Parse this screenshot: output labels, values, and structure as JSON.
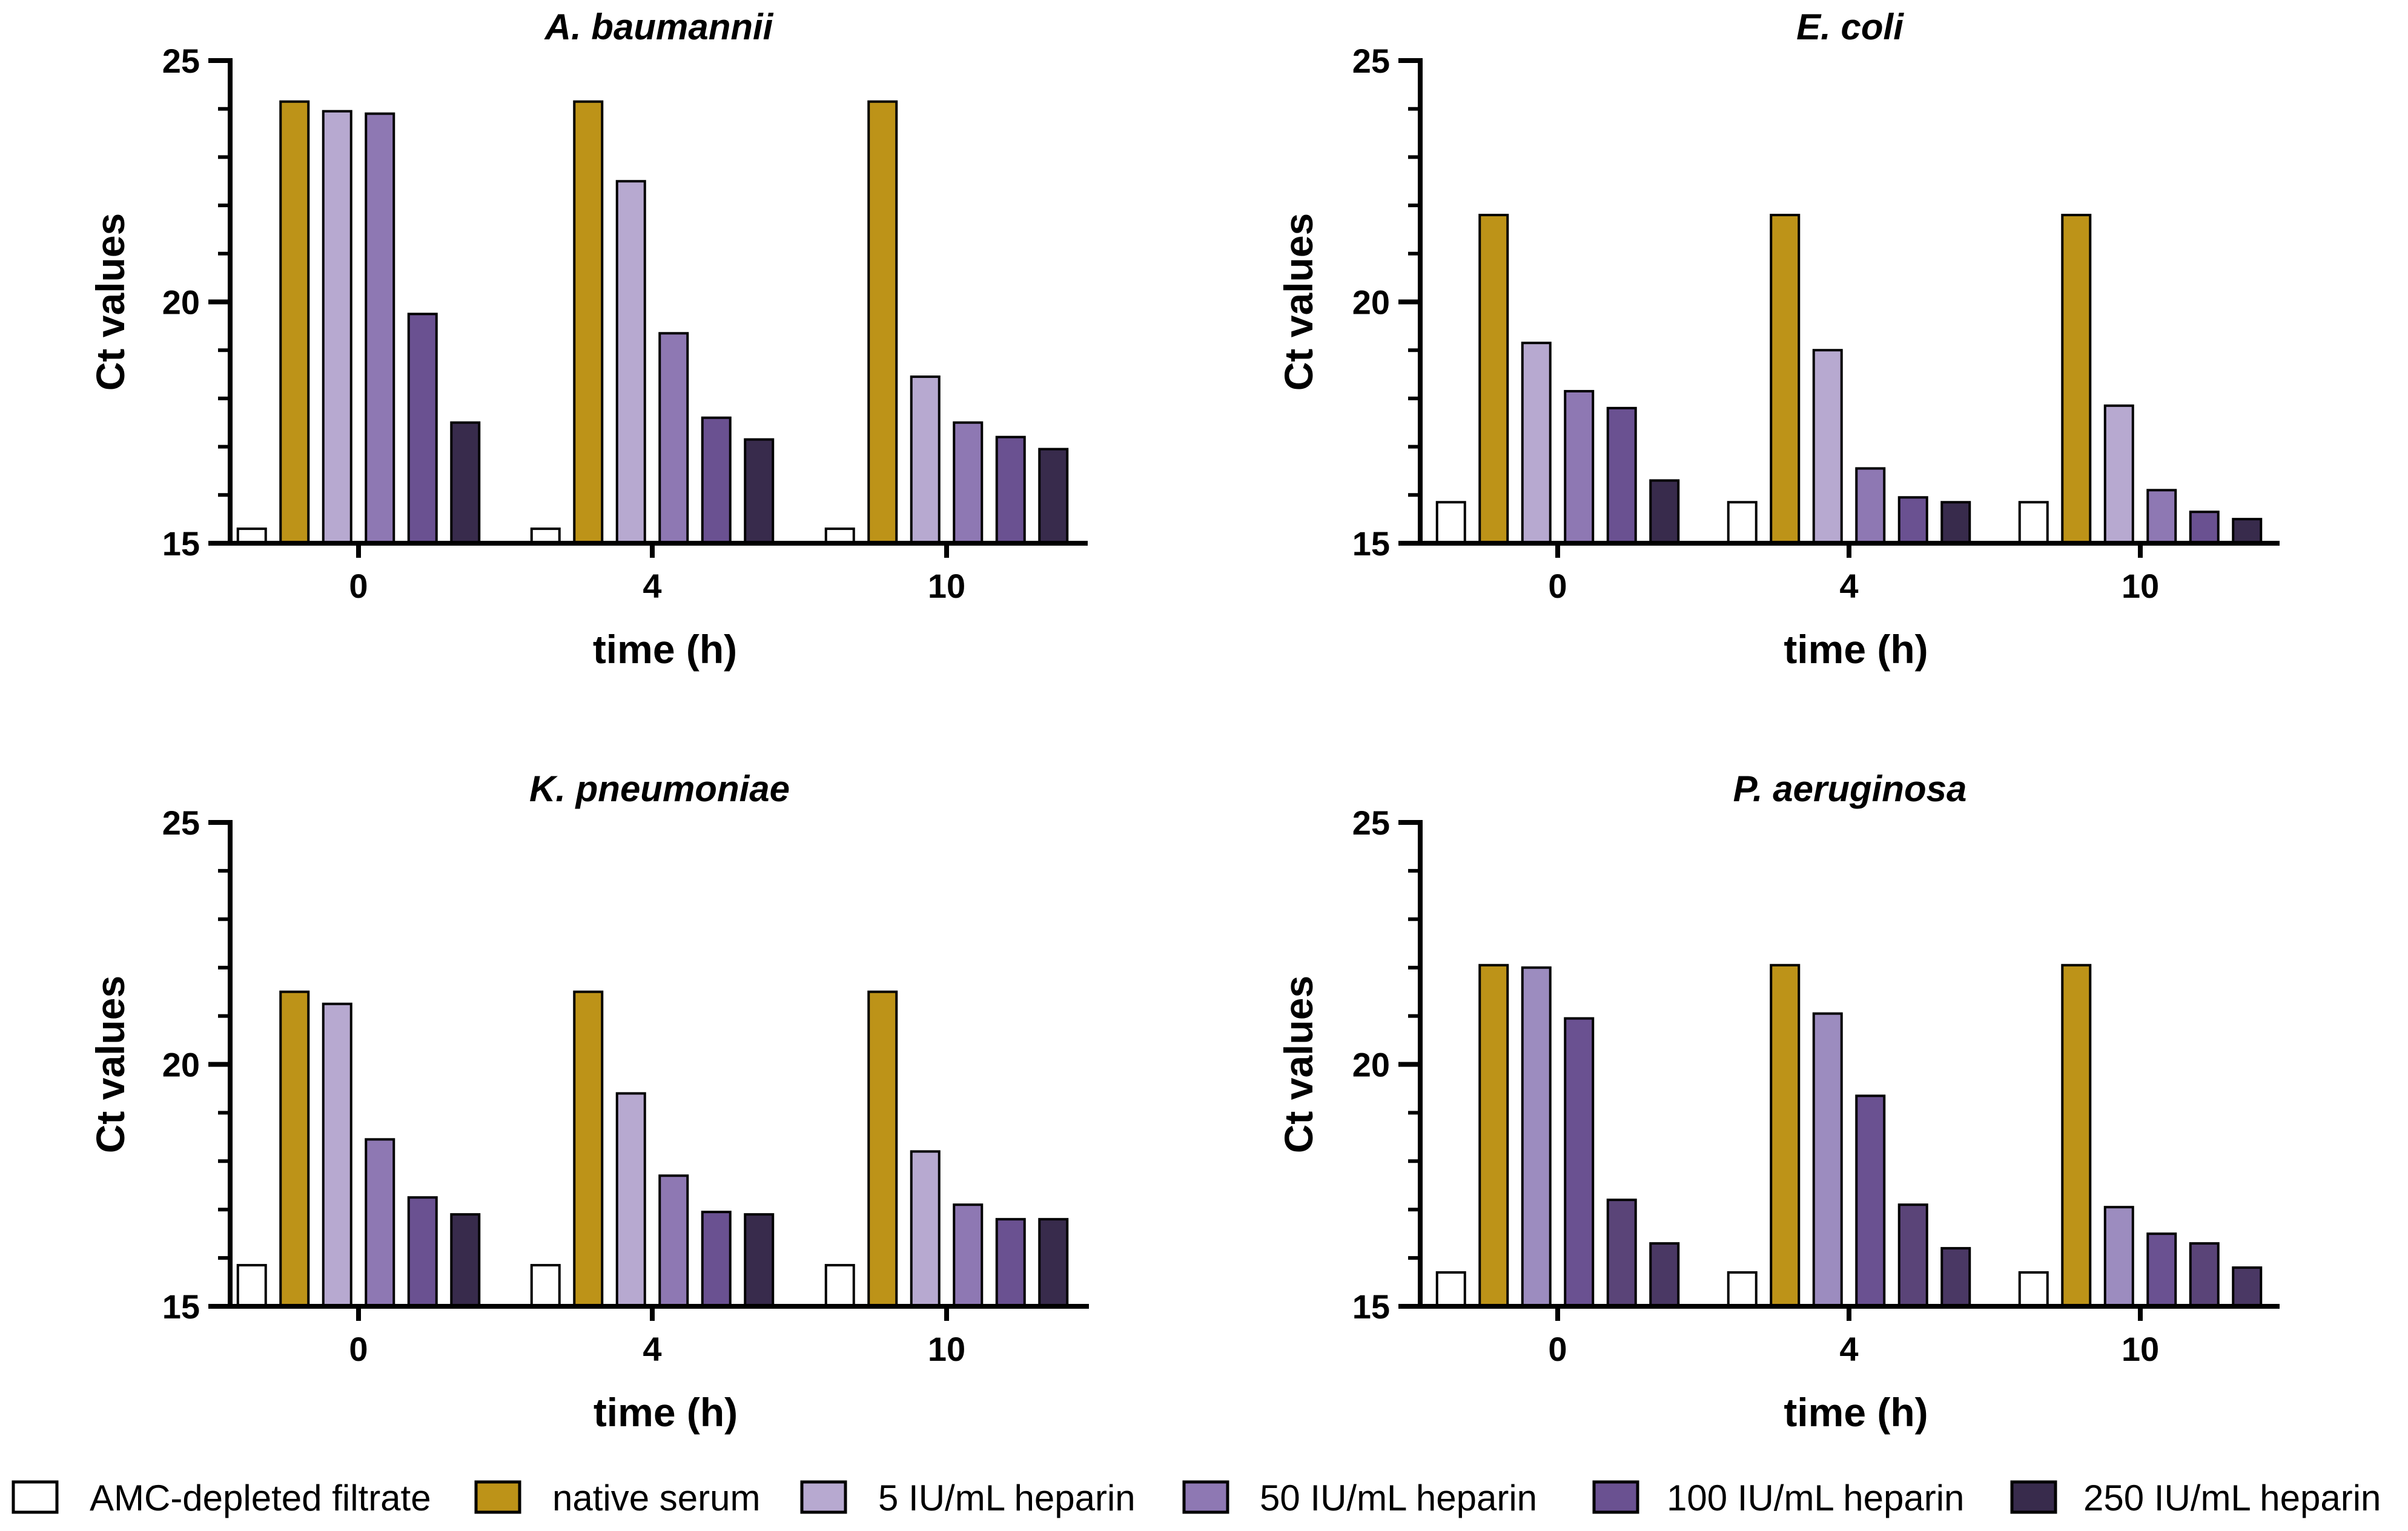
{
  "chart_data": [
    {
      "type": "bar",
      "title": "A. baumannii",
      "xlabel": "time (h)",
      "ylabel": "Ct values",
      "ylim": [
        15,
        25
      ],
      "yticks": [
        15,
        20,
        25
      ],
      "categories": [
        "0",
        "4",
        "10"
      ],
      "series": [
        {
          "name": "AMC-depleted filtrate",
          "values": [
            15.3,
            15.3,
            15.3
          ]
        },
        {
          "name": "native serum",
          "values": [
            24.15,
            24.15,
            24.15
          ]
        },
        {
          "name": "5 IU/mL heparin",
          "values": [
            23.95,
            22.5,
            18.45
          ]
        },
        {
          "name": "50 IU/mL heparin",
          "values": [
            23.9,
            19.35,
            17.5
          ]
        },
        {
          "name": "100 IU/mL heparin",
          "values": [
            19.75,
            17.6,
            17.2
          ]
        },
        {
          "name": "250 IU/mL heparin",
          "values": [
            17.5,
            17.15,
            16.95
          ]
        }
      ]
    },
    {
      "type": "bar",
      "title": "E. coli",
      "xlabel": "time (h)",
      "ylabel": "Ct values",
      "ylim": [
        15,
        25
      ],
      "yticks": [
        15,
        20,
        25
      ],
      "categories": [
        "0",
        "4",
        "10"
      ],
      "series": [
        {
          "name": "AMC-depleted filtrate",
          "values": [
            15.85,
            15.85,
            15.85
          ]
        },
        {
          "name": "native serum",
          "values": [
            21.8,
            21.8,
            21.8
          ]
        },
        {
          "name": "5 IU/mL heparin",
          "values": [
            19.15,
            19.0,
            17.85
          ]
        },
        {
          "name": "50 IU/mL heparin",
          "values": [
            18.15,
            16.55,
            16.1
          ]
        },
        {
          "name": "100 IU/mL heparin",
          "values": [
            17.8,
            15.95,
            15.65
          ]
        },
        {
          "name": "250 IU/mL heparin",
          "values": [
            16.3,
            15.85,
            15.5
          ]
        }
      ]
    },
    {
      "type": "bar",
      "title": "K. pneumoniae",
      "xlabel": "time (h)",
      "ylabel": "Ct values",
      "ylim": [
        15,
        25
      ],
      "yticks": [
        15,
        20,
        25
      ],
      "categories": [
        "0",
        "4",
        "10"
      ],
      "series": [
        {
          "name": "AMC-depleted filtrate",
          "values": [
            15.85,
            15.85,
            15.85
          ]
        },
        {
          "name": "native serum",
          "values": [
            21.5,
            21.5,
            21.5
          ]
        },
        {
          "name": "5 IU/mL heparin",
          "values": [
            21.25,
            19.4,
            18.2
          ]
        },
        {
          "name": "50 IU/mL heparin",
          "values": [
            18.45,
            17.7,
            17.1
          ]
        },
        {
          "name": "100 IU/mL heparin",
          "values": [
            17.25,
            16.95,
            16.8
          ]
        },
        {
          "name": "250 IU/mL heparin",
          "values": [
            16.9,
            16.9,
            16.8
          ]
        }
      ]
    },
    {
      "type": "bar",
      "title": "P. aeruginosa",
      "xlabel": "time (h)",
      "ylabel": "Ct values",
      "ylim": [
        15,
        25
      ],
      "yticks": [
        15,
        20,
        25
      ],
      "categories": [
        "0",
        "4",
        "10"
      ],
      "series": [
        {
          "name": "AMC-depleted filtrate",
          "values": [
            15.7,
            15.7,
            15.7
          ]
        },
        {
          "name": "native serum",
          "values": [
            22.05,
            22.05,
            22.05
          ]
        },
        {
          "name": "5 IU/mL heparin",
          "values": [
            22.0,
            21.05,
            17.05
          ]
        },
        {
          "name": "50 IU/mL heparin",
          "values": [
            20.95,
            19.35,
            16.5
          ]
        },
        {
          "name": "100 IU/mL heparin",
          "values": [
            17.2,
            17.1,
            16.3
          ]
        },
        {
          "name": "250 IU/mL heparin",
          "values": [
            16.3,
            16.2,
            15.8
          ]
        }
      ]
    }
  ],
  "colors": {
    "default": [
      "#ffffff",
      "#bd9318",
      "#b7a9d0",
      "#8e78b3",
      "#6a5191",
      "#382b4c"
    ],
    "p_aeruginosa": [
      "#ffffff",
      "#bd9318",
      "#9c8cbf",
      "#6a5191",
      "#5a4478",
      "#4a3864"
    ]
  },
  "legend": [
    {
      "label": "AMC-depleted filtrate",
      "color": "#ffffff"
    },
    {
      "label": "native serum",
      "color": "#bd9318"
    },
    {
      "label": "5 IU/mL heparin",
      "color": "#b7a9d0"
    },
    {
      "label": "50 IU/mL heparin",
      "color": "#8e78b3"
    },
    {
      "label": "100 IU/mL heparin",
      "color": "#6a5191"
    },
    {
      "label": "250 IU/mL heparin",
      "color": "#382b4c"
    }
  ]
}
